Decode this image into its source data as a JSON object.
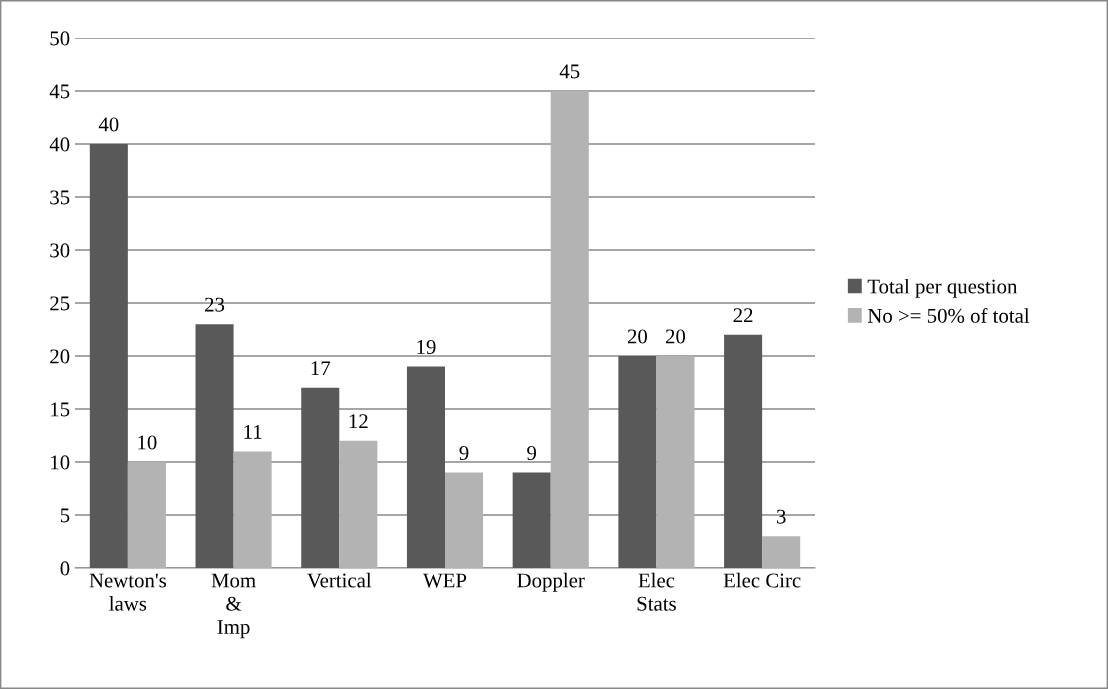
{
  "chart_data": {
    "type": "bar",
    "categories": [
      "Newton's\nlaws",
      "Mom\n&\nImp",
      "Vertical",
      "WEP",
      "Doppler",
      "Elec\nStats",
      "Elec Circ"
    ],
    "series": [
      {
        "name": "Total per question",
        "color": "#595959",
        "values": [
          40,
          23,
          17,
          19,
          9,
          20,
          22
        ]
      },
      {
        "name": "No >= 50% of total",
        "color": "#b3b3b3",
        "values": [
          10,
          11,
          12,
          9,
          45,
          20,
          3
        ]
      }
    ],
    "ylim": [
      0,
      50
    ],
    "yticks": [
      0,
      5,
      10,
      15,
      20,
      25,
      30,
      35,
      40,
      45,
      50
    ],
    "grid": "y",
    "legend": "right",
    "data_labels": true
  }
}
